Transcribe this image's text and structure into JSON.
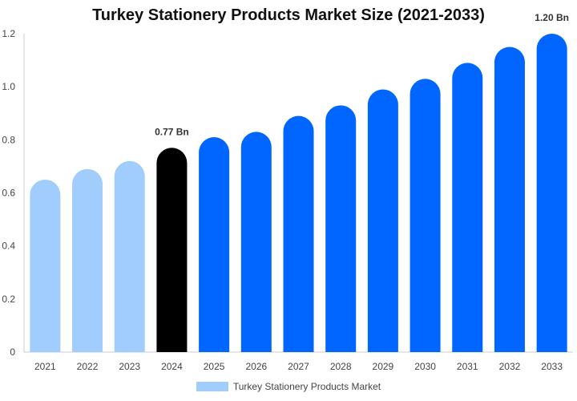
{
  "chart_data": {
    "type": "bar",
    "title": "Turkey Stationery Products Market Size (2021-2033)",
    "xlabel": "",
    "ylabel": "",
    "categories": [
      "2021",
      "2022",
      "2023",
      "2024",
      "2025",
      "2026",
      "2027",
      "2028",
      "2029",
      "2030",
      "2031",
      "2032",
      "2033"
    ],
    "series": [
      {
        "name": "Turkey Stationery Products Market",
        "values": [
          0.65,
          0.69,
          0.72,
          0.77,
          0.81,
          0.83,
          0.89,
          0.93,
          0.99,
          1.03,
          1.09,
          1.15,
          1.2
        ]
      }
    ],
    "bar_colors": [
      "#a0cdfc",
      "#a0cdfc",
      "#a0cdfc",
      "#000000",
      "#0066ff",
      "#0066ff",
      "#0066ff",
      "#0066ff",
      "#0066ff",
      "#0066ff",
      "#0066ff",
      "#0066ff",
      "#0066ff"
    ],
    "data_labels": [
      {
        "index": 3,
        "text": "0.77 Bn"
      },
      {
        "index": 12,
        "text": "1.20 Bn"
      }
    ],
    "ylim": [
      0,
      1.2
    ],
    "yticks": [
      "0",
      "0.2",
      "0.4",
      "0.6",
      "0.8",
      "1.0",
      "1.2"
    ],
    "grid": false,
    "legend_position": "bottom"
  },
  "legend": {
    "label": "Turkey Stationery Products Market",
    "color": "#a0cdfc"
  }
}
